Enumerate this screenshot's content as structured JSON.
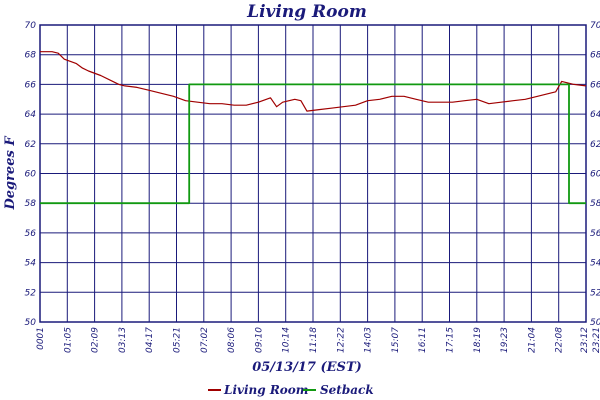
{
  "chart_data": {
    "type": "line",
    "title": "Living Room",
    "xlabel": "05/13/17 (EST)",
    "ylabel": "Degrees F",
    "ylim": [
      50,
      70
    ],
    "y_ticks": [
      "50",
      "52",
      "54",
      "56",
      "58",
      "60",
      "62",
      "64",
      "66",
      "68",
      "70"
    ],
    "x_ticks": [
      "0001",
      "01:05",
      "02:09",
      "03:13",
      "04:17",
      "05:21",
      "07:02",
      "08:06",
      "09:10",
      "10:14",
      "11:18",
      "12:22",
      "14:03",
      "15:07",
      "16:11",
      "17:15",
      "18:19",
      "19:23",
      "21:04",
      "22:08",
      "23:12",
      "23:21"
    ],
    "grid": true,
    "legend_position": "bottom",
    "colors": {
      "frame": "#1a1a7a",
      "living_room": "#a00000",
      "setback": "#119911"
    },
    "series": [
      {
        "name": "Living Room",
        "points": [
          [
            0,
            68.2
          ],
          [
            1,
            68.2
          ],
          [
            1.5,
            68.1
          ],
          [
            2,
            67.7
          ],
          [
            3,
            67.4
          ],
          [
            3.5,
            67.1
          ],
          [
            4,
            66.9
          ],
          [
            5,
            66.6
          ],
          [
            6,
            66.2
          ],
          [
            6.5,
            66.0
          ],
          [
            7,
            65.9
          ],
          [
            8,
            65.8
          ],
          [
            9,
            65.6
          ],
          [
            10,
            65.4
          ],
          [
            11,
            65.2
          ],
          [
            12,
            64.9
          ],
          [
            13,
            64.8
          ],
          [
            14,
            64.7
          ],
          [
            15,
            64.7
          ],
          [
            16,
            64.6
          ],
          [
            17,
            64.6
          ],
          [
            18,
            64.8
          ],
          [
            19,
            65.1
          ],
          [
            19.5,
            64.5
          ],
          [
            20,
            64.8
          ],
          [
            21,
            65.0
          ],
          [
            21.5,
            64.9
          ],
          [
            22,
            64.2
          ],
          [
            23,
            64.3
          ],
          [
            24,
            64.4
          ],
          [
            25,
            64.5
          ],
          [
            26,
            64.6
          ],
          [
            27,
            64.9
          ],
          [
            28,
            65.0
          ],
          [
            29,
            65.2
          ],
          [
            30,
            65.2
          ],
          [
            31,
            65.0
          ],
          [
            32,
            64.8
          ],
          [
            33,
            64.8
          ],
          [
            34,
            64.8
          ],
          [
            35,
            64.9
          ],
          [
            36,
            65.0
          ],
          [
            37,
            64.7
          ],
          [
            38,
            64.8
          ],
          [
            39,
            64.9
          ],
          [
            40,
            65.0
          ],
          [
            41,
            65.2
          ],
          [
            42,
            65.4
          ],
          [
            42.5,
            65.5
          ],
          [
            43,
            66.2
          ],
          [
            44,
            66.0
          ],
          [
            45,
            65.9
          ]
        ],
        "color": "#a00000"
      },
      {
        "name": "Setback",
        "points": [
          [
            0,
            58
          ],
          [
            12.3,
            58
          ],
          [
            12.3,
            66
          ],
          [
            43.6,
            66
          ],
          [
            43.6,
            58
          ],
          [
            45,
            58
          ]
        ],
        "color": "#119911"
      }
    ]
  }
}
